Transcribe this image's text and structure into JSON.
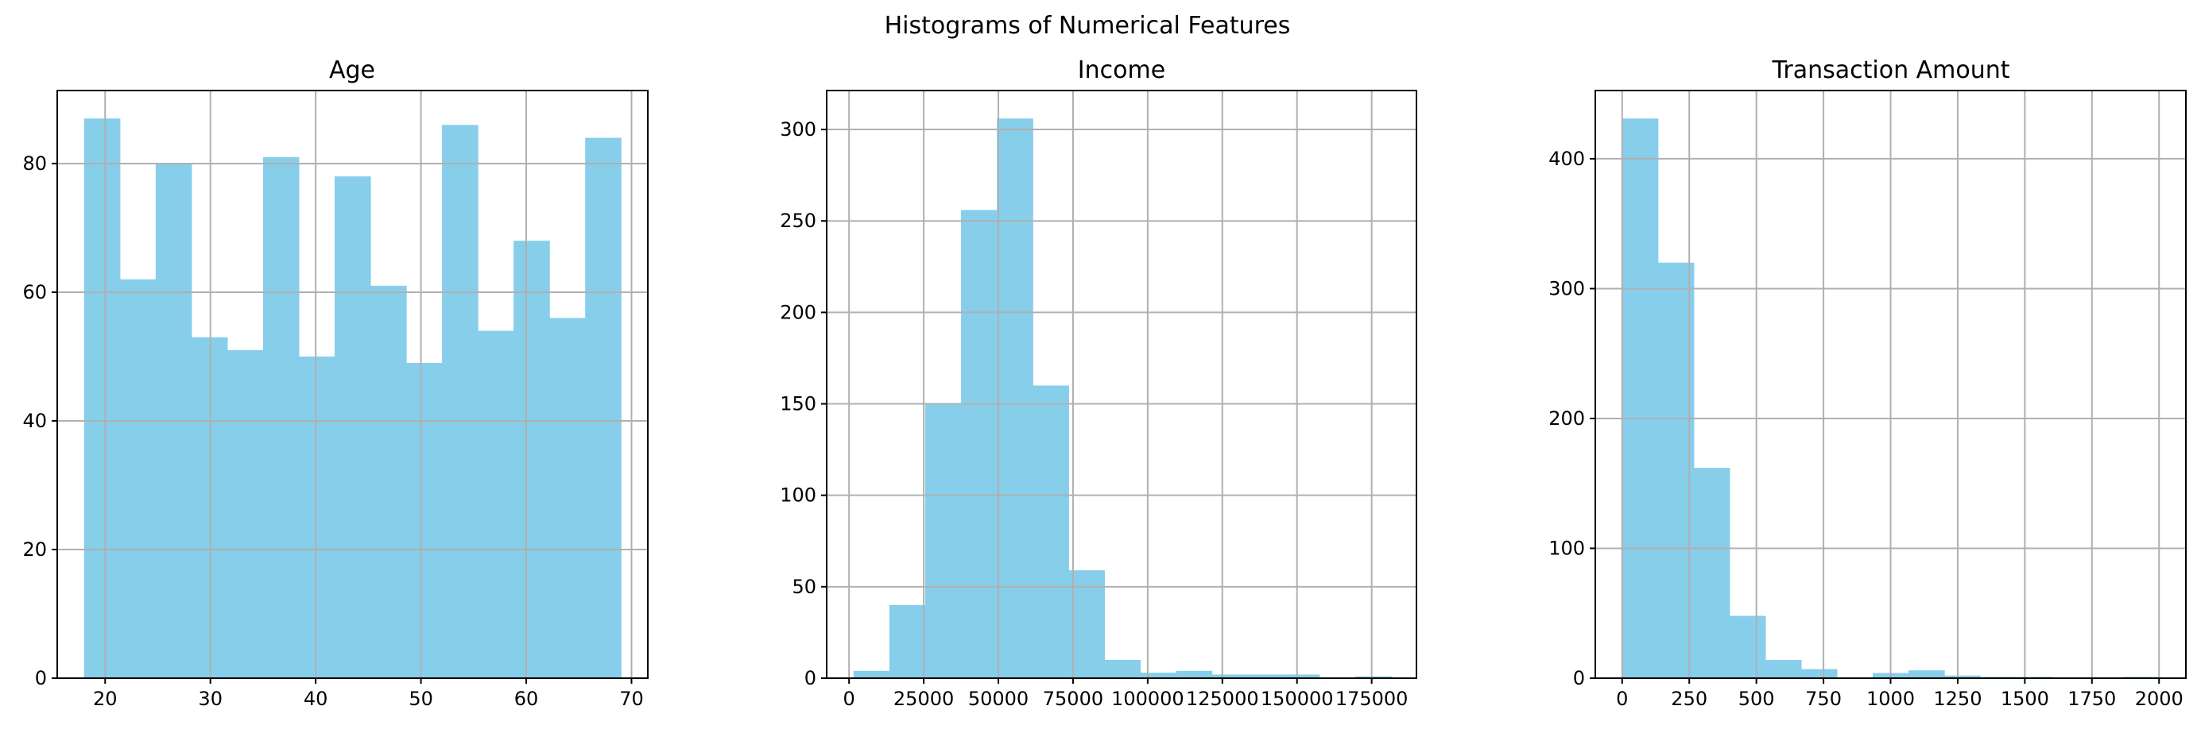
{
  "figure": {
    "suptitle": "Histograms of Numerical Features"
  },
  "chart_data": [
    {
      "type": "bar",
      "title": "Age",
      "xlabel": "",
      "ylabel": "",
      "color": "#87ceeb",
      "grid": true,
      "xlim": [
        15.45,
        71.55
      ],
      "ylim": [
        0,
        91.35
      ],
      "xticks": [
        20,
        30,
        40,
        50,
        60,
        70
      ],
      "xtick_labels": [
        "20",
        "30",
        "40",
        "50",
        "60",
        "70"
      ],
      "yticks": [
        0,
        20,
        40,
        60,
        80
      ],
      "ytick_labels": [
        "0",
        "20",
        "40",
        "60",
        "80"
      ],
      "bin_edges": [
        18,
        21.4,
        24.8,
        28.2,
        31.6,
        35,
        38.4,
        41.8,
        45.2,
        48.6,
        52,
        55.4,
        58.8,
        62.2,
        65.6,
        69
      ],
      "counts": [
        87,
        62,
        80,
        53,
        51,
        81,
        50,
        78,
        61,
        49,
        86,
        54,
        68,
        56,
        84
      ]
    },
    {
      "type": "bar",
      "title": "Income",
      "xlabel": "",
      "ylabel": "",
      "color": "#87ceeb",
      "grid": true,
      "xlim": [
        -7500,
        190000
      ],
      "ylim": [
        0,
        321.3
      ],
      "xticks": [
        0,
        25000,
        50000,
        75000,
        100000,
        125000,
        150000,
        175000
      ],
      "xtick_labels": [
        "0",
        "25000",
        "50000",
        "75000",
        "100000",
        "125000",
        "150000",
        "175000"
      ],
      "yticks": [
        0,
        50,
        100,
        150,
        200,
        250,
        300
      ],
      "ytick_labels": [
        "0",
        "50",
        "100",
        "150",
        "200",
        "250",
        "300"
      ],
      "bin_edges": [
        1500,
        13500,
        25500,
        37500,
        49500,
        61500,
        73500,
        85500,
        97500,
        109500,
        121500,
        133500,
        145500,
        157500,
        169500,
        181500
      ],
      "counts": [
        4,
        40,
        150,
        256,
        306,
        160,
        59,
        10,
        3,
        4,
        2,
        2,
        2,
        0,
        1
      ]
    },
    {
      "type": "bar",
      "title": "Transaction Amount",
      "xlabel": "",
      "ylabel": "",
      "color": "#87ceeb",
      "grid": true,
      "xlim": [
        -100,
        2100
      ],
      "ylim": [
        0,
        452.55
      ],
      "xticks": [
        0,
        250,
        500,
        750,
        1000,
        1250,
        1500,
        1750,
        2000
      ],
      "xtick_labels": [
        "0",
        "250",
        "500",
        "750",
        "1000",
        "1250",
        "1500",
        "1750",
        "2000"
      ],
      "yticks": [
        0,
        100,
        200,
        300,
        400
      ],
      "ytick_labels": [
        "0",
        "100",
        "200",
        "300",
        "400"
      ],
      "bin_edges": [
        0,
        133.3,
        266.7,
        400,
        533.3,
        666.7,
        800,
        933.3,
        1066.7,
        1200,
        1333.3,
        1466.7,
        1600,
        1733.3,
        1866.7,
        2000
      ],
      "counts": [
        431,
        320,
        162,
        48,
        14,
        7,
        0,
        4,
        6,
        2,
        1,
        1,
        0,
        0,
        1
      ]
    }
  ]
}
